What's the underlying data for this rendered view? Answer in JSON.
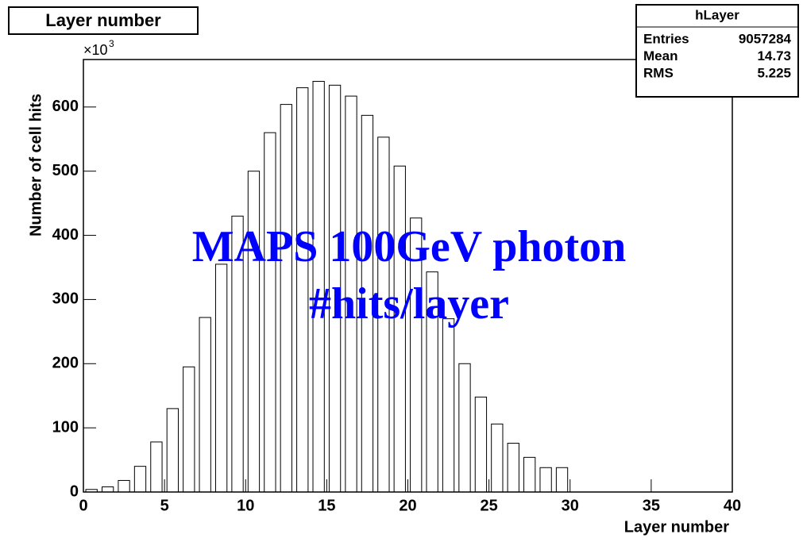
{
  "chart_data": {
    "type": "histogram",
    "title": "Layer number",
    "x_label": "Layer number",
    "y_label": "Number of cell hits",
    "y_multiplier": "×10",
    "y_exponent": "3",
    "bins": [
      0,
      1,
      2,
      3,
      4,
      5,
      6,
      7,
      8,
      9,
      10,
      11,
      12,
      13,
      14,
      15,
      16,
      17,
      18,
      19,
      20,
      21,
      22,
      23,
      24,
      25,
      26,
      27,
      28,
      29,
      30,
      31,
      32,
      33,
      34,
      35,
      36,
      37,
      38,
      39,
      40
    ],
    "values": [
      4,
      8,
      18,
      40,
      78,
      130,
      195,
      272,
      355,
      430,
      500,
      560,
      604,
      630,
      640,
      634,
      617,
      587,
      553,
      508,
      427,
      343,
      270,
      200,
      148,
      106,
      76,
      54,
      38,
      38,
      0,
      0,
      0,
      0,
      0,
      0,
      0,
      0,
      0,
      0
    ],
    "color": "#ffffff",
    "edge_color": "#000000",
    "xlim": [
      0,
      40
    ],
    "xticks": [
      0,
      5,
      10,
      15,
      20,
      25,
      30,
      35,
      40
    ],
    "ylim": [
      0,
      674
    ],
    "yticks": [
      0,
      100,
      200,
      300,
      400,
      500,
      600
    ],
    "stats": {
      "name": "hLayer",
      "rows": [
        [
          "Entries",
          9057284
        ],
        [
          "Mean",
          14.73
        ],
        [
          "RMS",
          5.225
        ]
      ]
    },
    "annotations": [
      "MAPS 100GeV photon",
      "#hits/layer"
    ],
    "annotation_color": "#0000ff"
  }
}
